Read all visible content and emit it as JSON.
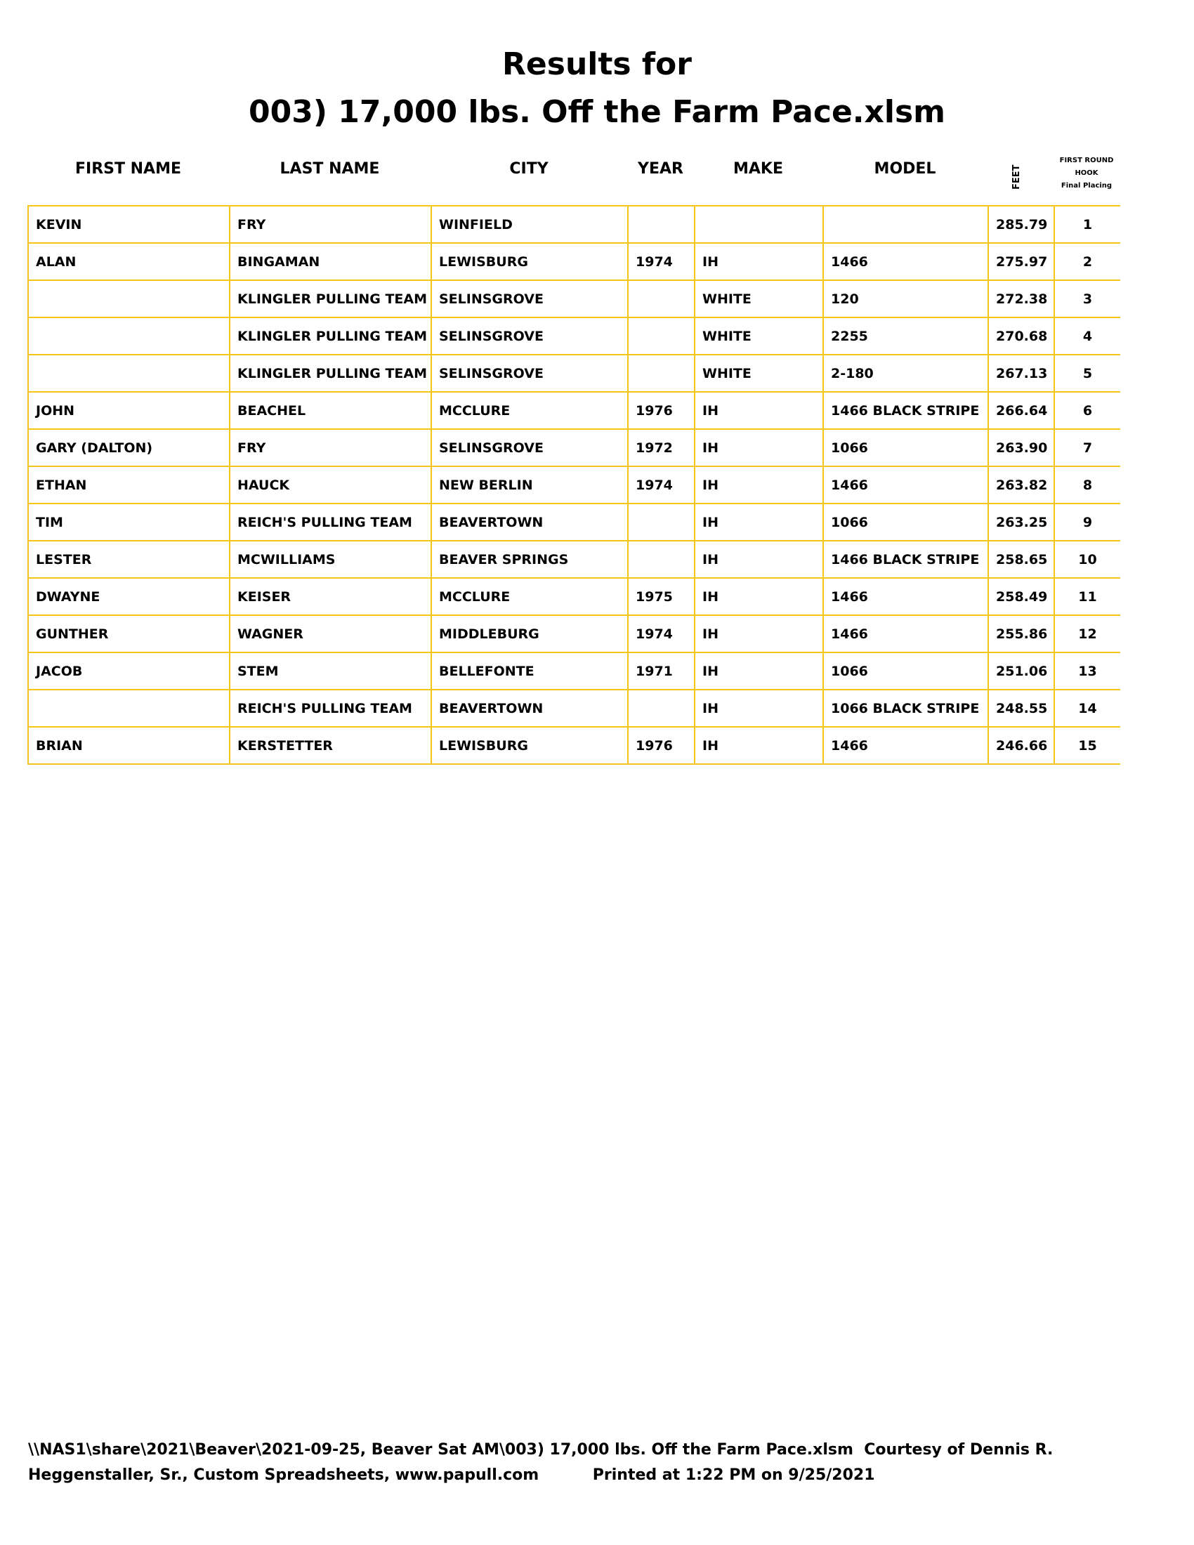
{
  "title": {
    "line1": "Results for",
    "line2": "003) 17,000 lbs. Off the Farm Pace.xlsm"
  },
  "headers": {
    "first": "FIRST NAME",
    "last": "LAST NAME",
    "city": "CITY",
    "year": "YEAR",
    "make": "MAKE",
    "model": "MODEL",
    "feet": "FEET",
    "hook1": "FIRST ROUND",
    "hook2": "HOOK",
    "hook3": "Final Placing"
  },
  "rows": [
    [
      "KEVIN",
      "FRY",
      "WINFIELD",
      "",
      "",
      "",
      "285.79",
      "1"
    ],
    [
      "ALAN",
      "BINGAMAN",
      "LEWISBURG",
      "1974",
      "IH",
      "1466",
      "275.97",
      "2"
    ],
    [
      "",
      "KLINGLER PULLING TEAM",
      "SELINSGROVE",
      "",
      "WHITE",
      "120",
      "272.38",
      "3"
    ],
    [
      "",
      "KLINGLER PULLING TEAM",
      "SELINSGROVE",
      "",
      "WHITE",
      "2255",
      "270.68",
      "4"
    ],
    [
      "",
      "KLINGLER PULLING TEAM",
      "SELINSGROVE",
      "",
      "WHITE",
      "2-180",
      "267.13",
      "5"
    ],
    [
      "JOHN",
      "BEACHEL",
      "MCCLURE",
      "1976",
      "IH",
      "1466 BLACK STRIPE",
      "266.64",
      "6"
    ],
    [
      "GARY (DALTON)",
      "FRY",
      "SELINSGROVE",
      "1972",
      "IH",
      "1066",
      "263.90",
      "7"
    ],
    [
      "ETHAN",
      "HAUCK",
      "NEW BERLIN",
      "1974",
      "IH",
      "1466",
      "263.82",
      "8"
    ],
    [
      "TIM",
      "REICH'S PULLING TEAM",
      "BEAVERTOWN",
      "",
      "IH",
      "1066",
      "263.25",
      "9"
    ],
    [
      "LESTER",
      "MCWILLIAMS",
      "BEAVER SPRINGS",
      "",
      "IH",
      "1466 BLACK STRIPE",
      "258.65",
      "10"
    ],
    [
      "DWAYNE",
      "KEISER",
      "MCCLURE",
      "1975",
      "IH",
      "1466",
      "258.49",
      "11"
    ],
    [
      "GUNTHER",
      "WAGNER",
      "MIDDLEBURG",
      "1974",
      "IH",
      "1466",
      "255.86",
      "12"
    ],
    [
      "JACOB",
      "STEM",
      "BELLEFONTE",
      "1971",
      "IH",
      "1066",
      "251.06",
      "13"
    ],
    [
      "",
      "REICH'S PULLING TEAM",
      "BEAVERTOWN",
      "",
      "IH",
      "1066 BLACK STRIPE",
      "248.55",
      "14"
    ],
    [
      "BRIAN",
      "KERSTETTER",
      "LEWISBURG",
      "1976",
      "IH",
      "1466",
      "246.66",
      "15"
    ]
  ],
  "footer": {
    "line1": "\\\\NAS1\\share\\2021\\Beaver\\2021-09-25, Beaver Sat AM\\003) 17,000 lbs. Off the Farm Pace.xlsm  Courtesy of Dennis R.",
    "line2": "Heggenstaller, Sr., Custom Spreadsheets, www.papull.com          Printed at 1:22 PM on 9/25/2021"
  },
  "colors": {
    "border": "#F5C518"
  }
}
